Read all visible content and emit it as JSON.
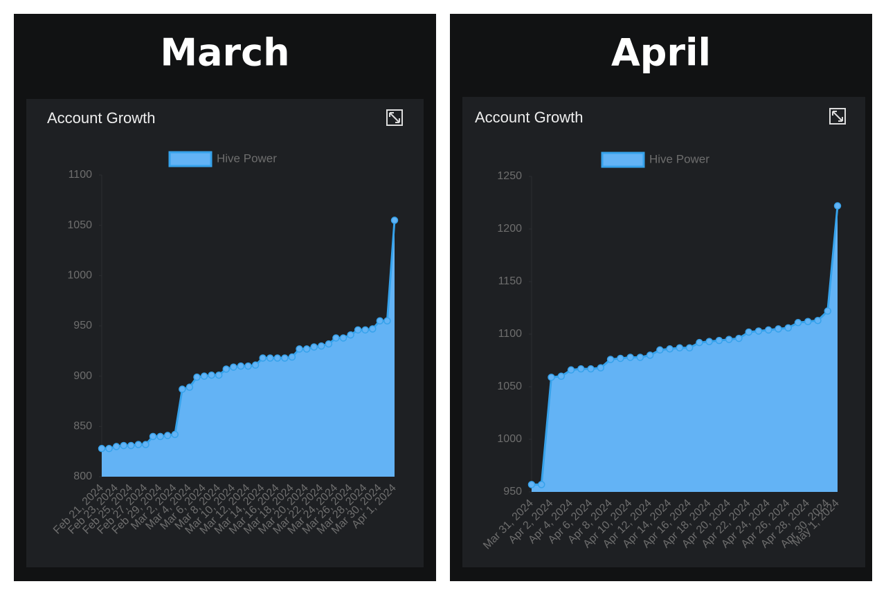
{
  "headings": [
    "March",
    "April"
  ],
  "chart_data": [
    {
      "type": "line",
      "fill": true,
      "title": "Account Growth",
      "categories": [
        "Feb 21, 2024",
        null,
        "Feb 23, 2024",
        null,
        "Feb 25, 2024",
        null,
        "Feb 27, 2024",
        null,
        "Feb 29, 2024",
        null,
        "Mar 2, 2024",
        null,
        "Mar 4, 2024",
        null,
        "Mar 6, 2024",
        null,
        "Mar 8, 2024",
        null,
        "Mar 10, 2024",
        null,
        "Mar 12, 2024",
        null,
        "Mar 14, 2024",
        null,
        "Mar 16, 2024",
        null,
        "Mar 18, 2024",
        null,
        "Mar 20, 2024",
        null,
        "Mar 22, 2024",
        null,
        "Mar 24, 2024",
        null,
        "Mar 26, 2024",
        null,
        "Mar 28, 2024",
        null,
        "Mar 30, 2024",
        null,
        "Apr 1, 2024"
      ],
      "series": [
        {
          "name": "Hive Power",
          "color": "#36a2eb",
          "fill_color": "#63b3f5",
          "values": [
            828,
            828,
            830,
            831,
            831,
            832,
            832,
            840,
            840,
            841,
            842,
            887,
            889,
            899,
            900,
            901,
            901,
            907,
            909,
            910,
            910,
            911,
            918,
            918,
            918,
            918,
            919,
            927,
            927,
            929,
            930,
            932,
            938,
            938,
            941,
            946,
            946,
            947,
            955,
            955,
            1055
          ]
        }
      ],
      "ylim": [
        800,
        1100
      ],
      "yticks": [
        800,
        850,
        900,
        950,
        1000,
        1050,
        1100
      ]
    },
    {
      "type": "line",
      "fill": true,
      "title": "Account Growth",
      "categories": [
        "Mar 31, 2024",
        null,
        "Apr 2, 2024",
        null,
        "Apr 4, 2024",
        null,
        "Apr 6, 2024",
        null,
        "Apr 8, 2024",
        null,
        "Apr 10, 2024",
        null,
        "Apr 12, 2024",
        null,
        "Apr 14, 2024",
        null,
        "Apr 16, 2024",
        null,
        "Apr 18, 2024",
        null,
        "Apr 20, 2024",
        null,
        "Apr 22, 2024",
        null,
        "Apr 24, 2024",
        null,
        "Apr 26, 2024",
        null,
        "Apr 28, 2024",
        null,
        "Apr 30, 2024",
        "May 1, 2024"
      ],
      "series": [
        {
          "name": "Hive Power",
          "color": "#36a2eb",
          "fill_color": "#63b3f5",
          "values": [
            957,
            957,
            1059,
            1060,
            1066,
            1067,
            1067,
            1068,
            1076,
            1077,
            1078,
            1078,
            1080,
            1085,
            1086,
            1087,
            1087,
            1092,
            1093,
            1094,
            1095,
            1096,
            1102,
            1103,
            1104,
            1105,
            1106,
            1111,
            1112,
            1113,
            1122,
            1222
          ]
        }
      ],
      "ylim": [
        950,
        1250
      ],
      "yticks": [
        950,
        1000,
        1050,
        1100,
        1150,
        1200,
        1250
      ]
    }
  ]
}
